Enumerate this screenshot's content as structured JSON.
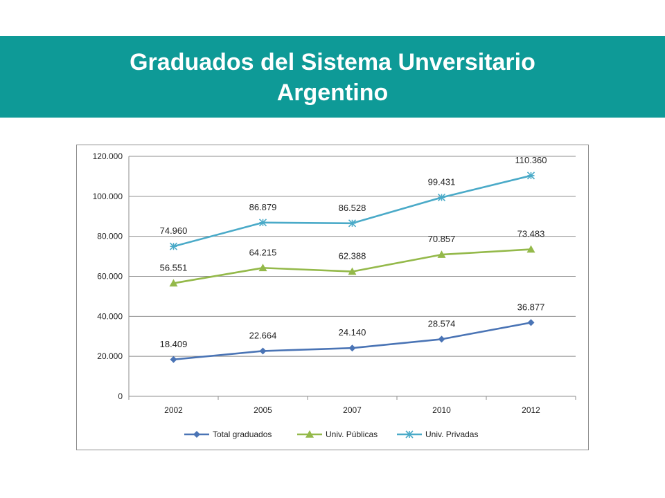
{
  "slide": {
    "title_line1": "Graduados del Sistema Unversitario",
    "title_line2": "Argentino",
    "band_color": "#0e9a97"
  },
  "chart_data": {
    "type": "line",
    "categories": [
      "2002",
      "2005",
      "2007",
      "2010",
      "2012"
    ],
    "series": [
      {
        "name": "Total graduados",
        "values": [
          18409,
          22664,
          24140,
          28574,
          36877
        ],
        "labels": [
          "18.409",
          "22.664",
          "24.140",
          "28.574",
          "36.877"
        ],
        "color": "#4a74b5",
        "marker": "diamond"
      },
      {
        "name": "Univ. Públicas",
        "values": [
          56551,
          64215,
          62388,
          70857,
          73483
        ],
        "labels": [
          "56.551",
          "64.215",
          "62.388",
          "70.857",
          "73.483"
        ],
        "color": "#94b94a",
        "marker": "triangle"
      },
      {
        "name": "Univ. Privadas",
        "values": [
          74960,
          86879,
          86528,
          99431,
          110360
        ],
        "labels": [
          "74.960",
          "86.879",
          "86.528",
          "99.431",
          "110.360"
        ],
        "color": "#4aaac8",
        "marker": "star"
      }
    ],
    "yticks": [
      "0",
      "20.000",
      "40.000",
      "60.000",
      "80.000",
      "100.000",
      "120.000"
    ],
    "ylim": [
      0,
      120000
    ],
    "grid": true,
    "legend_position": "bottom",
    "title": "",
    "xlabel": "",
    "ylabel": ""
  }
}
